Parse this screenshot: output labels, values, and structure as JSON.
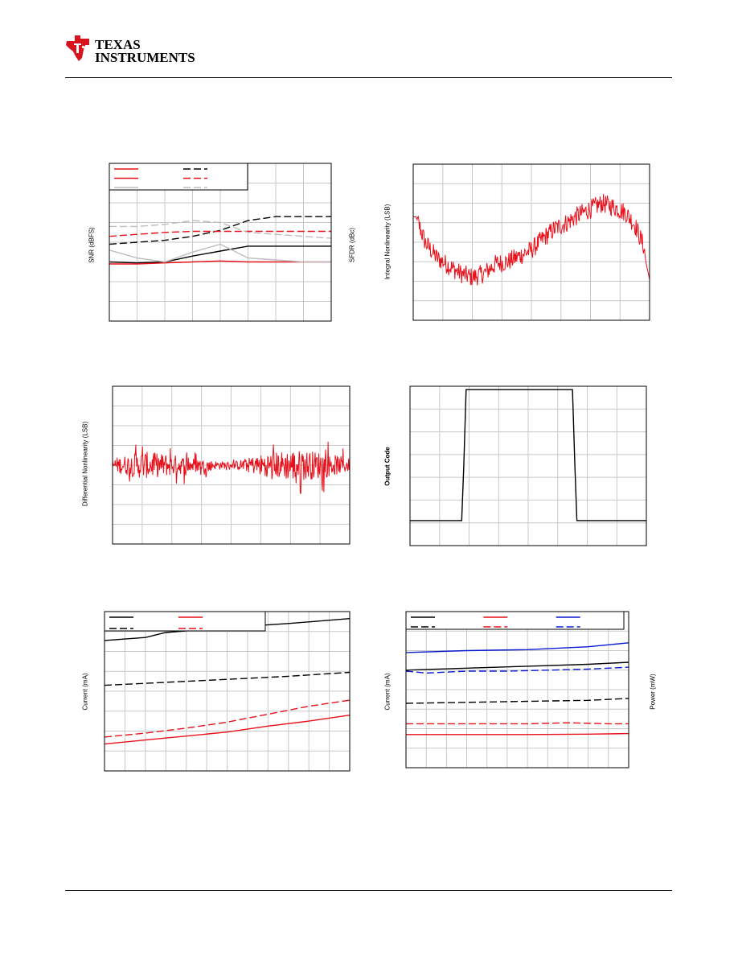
{
  "header": {
    "logo_word1": "TEXAS",
    "logo_word2": "INSTRUMENTS",
    "logo_icon": "ti-logo-icon"
  },
  "colors": {
    "grid": "#c8c8c8",
    "red": "#e8101a",
    "black": "#000000",
    "gray": "#bdbdbd",
    "blue": "#0a1acf",
    "logo_red": "#d7141e"
  },
  "charts": {
    "snr": {
      "ylabel": "SNR (dBFS)",
      "ylabel_right": "SFDR (dBc)"
    },
    "inl": {
      "ylabel": "Integral Nonlinearity (LSB)"
    },
    "dnl": {
      "ylabel": "Differential Nonlinearity (LSB)"
    },
    "step": {
      "ylabel": "Output Code"
    },
    "cur1": {
      "ylabel": "Current (mA)"
    },
    "cur2": {
      "ylabel": "Current (mA)",
      "ylabel_right": "Power (mW)"
    }
  },
  "chart_data": [
    {
      "id": "snr",
      "type": "line",
      "title": "",
      "xlabel": "",
      "ylabel": "SNR (dBFS)",
      "ylabel_right": "SFDR (dBc)",
      "xlim": [
        0,
        8
      ],
      "ylim": [
        0,
        8
      ],
      "grid": true,
      "legend": "top-left",
      "series": [
        {
          "color": "black",
          "dash": false,
          "x": [
            0,
            1,
            2,
            3,
            4,
            5,
            6,
            7,
            8
          ],
          "y": [
            3.0,
            2.95,
            3.0,
            3.3,
            3.55,
            3.8,
            3.8,
            3.8,
            3.8
          ]
        },
        {
          "color": "black",
          "dash": true,
          "x": [
            0,
            1,
            2,
            3,
            4,
            5,
            6,
            7,
            8
          ],
          "y": [
            3.9,
            4.0,
            4.1,
            4.3,
            4.6,
            5.1,
            5.3,
            5.3,
            5.3
          ]
        },
        {
          "color": "red",
          "dash": false,
          "x": [
            0,
            1,
            2,
            3,
            4,
            5,
            6,
            7,
            8
          ],
          "y": [
            2.9,
            2.9,
            2.95,
            3.0,
            3.05,
            3.0,
            3.0,
            3.0,
            3.0
          ]
        },
        {
          "color": "red",
          "dash": true,
          "x": [
            0,
            1,
            2,
            3,
            4,
            5,
            6,
            7,
            8
          ],
          "y": [
            4.3,
            4.4,
            4.5,
            4.55,
            4.55,
            4.55,
            4.55,
            4.55,
            4.55
          ]
        },
        {
          "color": "gray",
          "dash": false,
          "x": [
            0,
            1,
            2,
            3,
            4,
            5,
            6,
            7,
            8
          ],
          "y": [
            3.6,
            3.2,
            3.0,
            3.5,
            3.9,
            3.2,
            3.1,
            3.0,
            3.0
          ]
        },
        {
          "color": "gray",
          "dash": true,
          "x": [
            0,
            1,
            2,
            3,
            4,
            5,
            6,
            7,
            8
          ],
          "y": [
            4.8,
            4.8,
            4.9,
            5.1,
            5.0,
            4.5,
            4.4,
            4.3,
            4.2
          ]
        }
      ]
    },
    {
      "id": "inl",
      "type": "line",
      "title": "",
      "xlabel": "",
      "ylabel": "Integral Nonlinearity (LSB)",
      "xlim": [
        0,
        8
      ],
      "ylim": [
        0,
        8
      ],
      "grid": true,
      "series": [
        {
          "color": "red",
          "noise": 0.5,
          "x": [
            0,
            0.1,
            0.4,
            0.8,
            1.2,
            1.6,
            2.0,
            2.4,
            2.8,
            3.2,
            3.6,
            4.0,
            4.4,
            4.8,
            5.2,
            5.6,
            6.0,
            6.4,
            6.8,
            7.2,
            7.5,
            7.8,
            7.9,
            8.0
          ],
          "y": [
            5.3,
            5.3,
            4.0,
            3.2,
            2.8,
            2.4,
            2.2,
            2.4,
            2.9,
            3.0,
            3.3,
            3.6,
            4.2,
            4.7,
            5.0,
            5.4,
            5.7,
            6.0,
            5.8,
            5.5,
            4.9,
            3.8,
            2.8,
            2.1
          ]
        }
      ]
    },
    {
      "id": "dnl",
      "type": "line",
      "title": "",
      "xlabel": "",
      "ylabel": "Differential Nonlinearity (LSB)",
      "xlim": [
        0,
        8
      ],
      "ylim": [
        -4,
        4
      ],
      "grid": true,
      "series": [
        {
          "color": "red",
          "noise_envelope": [
            [
              0,
              0.35
            ],
            [
              1,
              0.7
            ],
            [
              2,
              0.55
            ],
            [
              3,
              0.3
            ],
            [
              4,
              0.15
            ],
            [
              5,
              0.55
            ],
            [
              6,
              0.8
            ],
            [
              7,
              0.7
            ],
            [
              8,
              0.35
            ]
          ],
          "x": [
            0,
            8
          ],
          "y": [
            0,
            0
          ]
        }
      ]
    },
    {
      "id": "step",
      "type": "line",
      "title": "",
      "xlabel": "",
      "ylabel": "Output Code",
      "xlim": [
        0,
        8
      ],
      "ylim": [
        0,
        7
      ],
      "grid": true,
      "series": [
        {
          "color": "black",
          "x": [
            0,
            1.75,
            1.82,
            1.9,
            5.5,
            5.58,
            5.65,
            8
          ],
          "y": [
            1.1,
            1.1,
            3.5,
            6.85,
            6.85,
            3.5,
            1.1,
            1.1
          ]
        }
      ]
    },
    {
      "id": "cur1",
      "type": "line",
      "title": "",
      "xlabel": "",
      "ylabel": "Current (mA)",
      "xlim": [
        0,
        12
      ],
      "ylim": [
        0,
        8
      ],
      "grid": true,
      "legend": "top-left",
      "series": [
        {
          "color": "black",
          "dash": false,
          "x": [
            0,
            2,
            3,
            6,
            9,
            12
          ],
          "y": [
            6.55,
            6.7,
            6.95,
            7.2,
            7.4,
            7.65
          ]
        },
        {
          "color": "black",
          "dash": true,
          "x": [
            0,
            3,
            6,
            9,
            12
          ],
          "y": [
            4.3,
            4.45,
            4.6,
            4.75,
            4.95
          ]
        },
        {
          "color": "red",
          "dash": false,
          "x": [
            0,
            2,
            4,
            6,
            8,
            10,
            12
          ],
          "y": [
            1.35,
            1.55,
            1.75,
            1.95,
            2.25,
            2.5,
            2.8
          ]
        },
        {
          "color": "red",
          "dash": true,
          "x": [
            0,
            2,
            4,
            6,
            8,
            10,
            12
          ],
          "y": [
            1.7,
            1.9,
            2.15,
            2.45,
            2.85,
            3.25,
            3.55
          ]
        }
      ]
    },
    {
      "id": "cur2",
      "type": "line",
      "title": "",
      "xlabel": "",
      "ylabel": "Current (mA)",
      "ylabel_right": "Power (mW)",
      "xlim": [
        0,
        11
      ],
      "ylim": [
        0,
        8
      ],
      "grid": true,
      "legend": "top-left",
      "series": [
        {
          "color": "blue",
          "dash": false,
          "x": [
            0,
            3,
            6,
            9,
            11
          ],
          "y": [
            5.9,
            6.0,
            6.05,
            6.2,
            6.4
          ]
        },
        {
          "color": "blue",
          "dash": true,
          "x": [
            0,
            1,
            3,
            5,
            7,
            9,
            11
          ],
          "y": [
            4.95,
            4.85,
            4.95,
            4.95,
            5.0,
            5.05,
            5.15
          ]
        },
        {
          "color": "black",
          "dash": false,
          "x": [
            0,
            3,
            6,
            9,
            11
          ],
          "y": [
            5.0,
            5.1,
            5.2,
            5.3,
            5.4
          ]
        },
        {
          "color": "black",
          "dash": true,
          "x": [
            0,
            3,
            6,
            9,
            11
          ],
          "y": [
            3.3,
            3.35,
            3.4,
            3.45,
            3.55
          ]
        },
        {
          "color": "red",
          "dash": true,
          "x": [
            0,
            2,
            4,
            6,
            8,
            10,
            11
          ],
          "y": [
            2.25,
            2.25,
            2.25,
            2.25,
            2.3,
            2.25,
            2.25
          ]
        },
        {
          "color": "red",
          "dash": false,
          "x": [
            0,
            3,
            6,
            9,
            11
          ],
          "y": [
            1.7,
            1.7,
            1.7,
            1.72,
            1.75
          ]
        }
      ]
    }
  ]
}
